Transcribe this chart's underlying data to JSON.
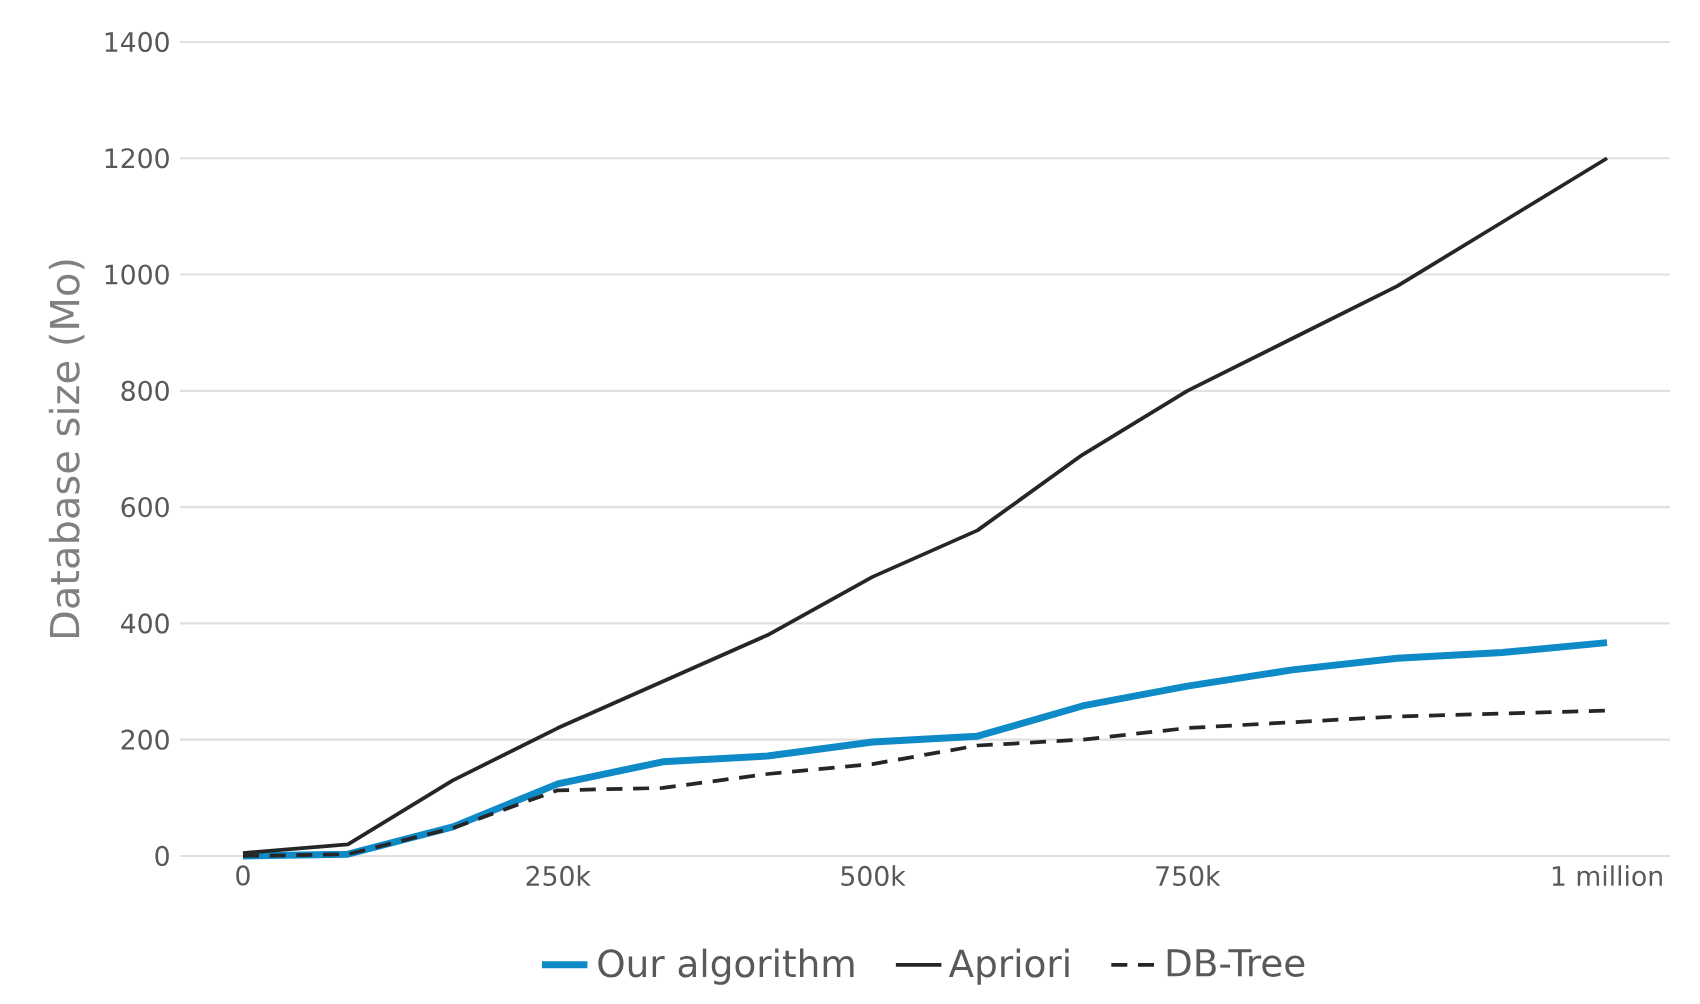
{
  "chart_data": {
    "type": "line",
    "ylabel": "Database size (Mo)",
    "categories": [
      "0",
      null,
      null,
      "250k",
      null,
      null,
      "500k",
      null,
      null,
      "750k",
      null,
      null,
      null,
      "1 million"
    ],
    "series": [
      {
        "name": "Our algorithm",
        "color": "#0e8ac7",
        "line_style": "solid",
        "values": [
          0,
          3,
          50,
          124,
          162,
          172,
          196,
          206,
          258,
          292,
          320,
          340,
          350,
          367
        ]
      },
      {
        "name": "Apriori",
        "color": "#262626",
        "line_style": "solid",
        "values": [
          5,
          20,
          130,
          220,
          300,
          380,
          480,
          560,
          690,
          800,
          890,
          980,
          1090,
          1200
        ]
      },
      {
        "name": "DB-Tree",
        "color": "#262626",
        "line_style": "dashed",
        "values": [
          0,
          3,
          48,
          113,
          117,
          141,
          158,
          190,
          200,
          220,
          230,
          240,
          245,
          250
        ]
      }
    ],
    "ylim": [
      0,
      1400
    ],
    "yticks": [
      0,
      200,
      400,
      600,
      800,
      1000,
      1200,
      1400
    ],
    "grid": "y",
    "legend": "bottom"
  }
}
